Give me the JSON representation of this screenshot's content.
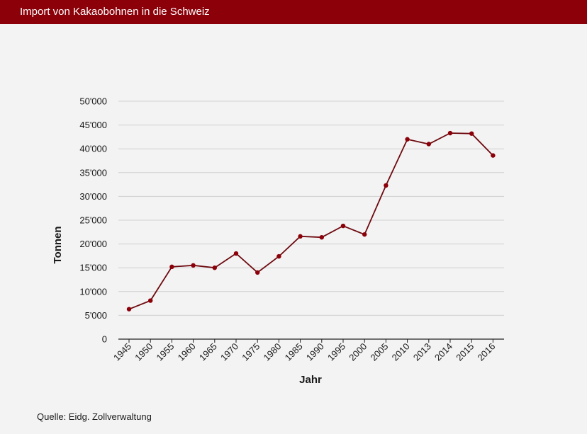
{
  "header": {
    "title": "Import von Kakaobohnen in die Schweiz"
  },
  "footer": {
    "source": "Quelle: Eidg. Zollverwaltung"
  },
  "colors": {
    "header": "#8b0009",
    "line": "#6e0a10",
    "marker": "#8b0009",
    "background": "#f3f3f3",
    "grid": "#d0d0d0"
  },
  "chart_data": {
    "type": "line",
    "title": "Import von Kakaobohnen in die Schweiz",
    "xlabel": "Jahr",
    "ylabel": "Tonnen",
    "categories": [
      "1945",
      "1950",
      "1955",
      "1960",
      "1965",
      "1970",
      "1975",
      "1980",
      "1985",
      "1990",
      "1995",
      "2000",
      "2005",
      "2010",
      "2013",
      "2014",
      "2015",
      "2016"
    ],
    "series": [
      {
        "values": [
          6300,
          8100,
          15200,
          15500,
          15000,
          18000,
          14000,
          17400,
          21600,
          21400,
          23800,
          22000,
          32300,
          42000,
          41000,
          43300,
          43200,
          38600
        ]
      }
    ],
    "ylim": [
      0,
      50000
    ],
    "yticks": [
      0,
      5000,
      10000,
      15000,
      20000,
      25000,
      30000,
      35000,
      40000,
      45000,
      50000
    ],
    "ytick_labels": [
      "0",
      "5'000",
      "10'000",
      "15'000",
      "20'000",
      "25'000",
      "30'000",
      "35'000",
      "40'000",
      "45'000",
      "50'000"
    ],
    "grid": true,
    "legend": "none"
  }
}
